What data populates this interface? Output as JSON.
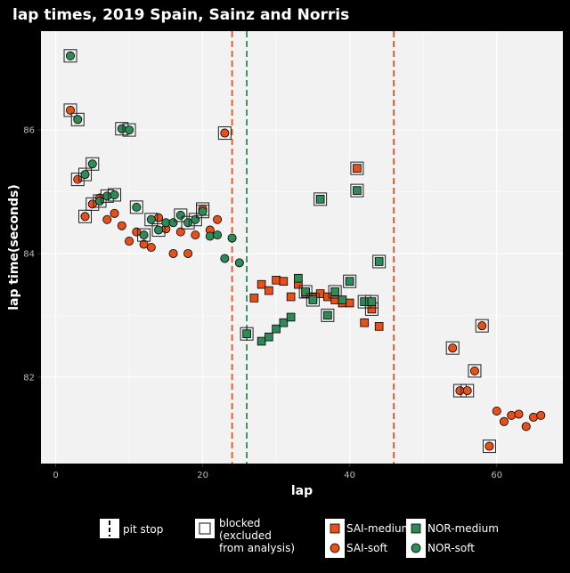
{
  "chart_data": {
    "type": "scatter",
    "title": "lap times, 2019 Spain,  Sainz and Norris",
    "xlabel": "lap",
    "ylabel": "lap time(seconds)",
    "xlim": [
      -2,
      69
    ],
    "ylim": [
      80.6,
      87.6
    ],
    "x_ticks": [
      0,
      20,
      40,
      60
    ],
    "y_ticks": [
      82,
      84,
      86
    ],
    "grid": true,
    "legend_position": "bottom",
    "colors": {
      "SAI": "#e8501a",
      "NOR": "#2e8a57",
      "pit_sai": "#e8501a",
      "pit_nor": "#2e8a57",
      "panel": "#f2f2f2",
      "grid": "#ffffff",
      "background": "#000000"
    },
    "pit_stops": [
      {
        "driver": "SAI",
        "lap": 24
      },
      {
        "driver": "NOR",
        "lap": 26
      },
      {
        "driver": "SAI",
        "lap": 46
      }
    ],
    "series": [
      {
        "name": "SAI-soft",
        "driver": "SAI",
        "compound": "soft",
        "shape": "circle",
        "points": [
          {
            "x": 2,
            "y": 86.32,
            "blocked": true
          },
          {
            "x": 3,
            "y": 85.2,
            "blocked": true
          },
          {
            "x": 4,
            "y": 84.6,
            "blocked": true
          },
          {
            "x": 5,
            "y": 84.8,
            "blocked": true
          },
          {
            "x": 6,
            "y": 84.9
          },
          {
            "x": 7,
            "y": 84.55
          },
          {
            "x": 8,
            "y": 84.65
          },
          {
            "x": 9,
            "y": 84.45
          },
          {
            "x": 10,
            "y": 84.2
          },
          {
            "x": 11,
            "y": 84.35
          },
          {
            "x": 12,
            "y": 84.15
          },
          {
            "x": 13,
            "y": 84.1
          },
          {
            "x": 14,
            "y": 84.58
          },
          {
            "x": 15,
            "y": 84.4
          },
          {
            "x": 16,
            "y": 84.0
          },
          {
            "x": 17,
            "y": 84.35
          },
          {
            "x": 18,
            "y": 84.0
          },
          {
            "x": 19,
            "y": 84.3
          },
          {
            "x": 20,
            "y": 84.72,
            "blocked": true
          },
          {
            "x": 21,
            "y": 84.38
          },
          {
            "x": 22,
            "y": 84.55
          },
          {
            "x": 23,
            "y": 85.95,
            "blocked": true
          },
          {
            "x": 54,
            "y": 82.47,
            "blocked": true
          },
          {
            "x": 55,
            "y": 81.78,
            "blocked": true
          },
          {
            "x": 56,
            "y": 81.78,
            "blocked": true
          },
          {
            "x": 57,
            "y": 82.1,
            "blocked": true
          },
          {
            "x": 58,
            "y": 82.83,
            "blocked": true
          },
          {
            "x": 59,
            "y": 80.88,
            "blocked": true
          },
          {
            "x": 60,
            "y": 81.45
          },
          {
            "x": 61,
            "y": 81.28
          },
          {
            "x": 62,
            "y": 81.38
          },
          {
            "x": 63,
            "y": 81.4
          },
          {
            "x": 64,
            "y": 81.2
          },
          {
            "x": 65,
            "y": 81.35
          },
          {
            "x": 66,
            "y": 81.38
          }
        ]
      },
      {
        "name": "SAI-medium",
        "driver": "SAI",
        "compound": "medium",
        "shape": "square",
        "points": [
          {
            "x": 27,
            "y": 83.28
          },
          {
            "x": 28,
            "y": 83.5
          },
          {
            "x": 29,
            "y": 83.4
          },
          {
            "x": 30,
            "y": 83.57
          },
          {
            "x": 31,
            "y": 83.55
          },
          {
            "x": 32,
            "y": 83.3
          },
          {
            "x": 33,
            "y": 83.5
          },
          {
            "x": 34,
            "y": 83.35
          },
          {
            "x": 35,
            "y": 83.3
          },
          {
            "x": 36,
            "y": 83.35
          },
          {
            "x": 37,
            "y": 83.3
          },
          {
            "x": 38,
            "y": 83.25
          },
          {
            "x": 39,
            "y": 83.2
          },
          {
            "x": 40,
            "y": 83.2
          },
          {
            "x": 41,
            "y": 85.38,
            "blocked": true
          },
          {
            "x": 42,
            "y": 82.88
          },
          {
            "x": 43,
            "y": 83.1,
            "blocked": true
          },
          {
            "x": 44,
            "y": 82.82
          }
        ]
      },
      {
        "name": "NOR-medium",
        "driver": "NOR",
        "compound": "medium",
        "shape": "square",
        "points": [
          {
            "x": 26,
            "y": 82.7,
            "blocked": true
          },
          {
            "x": 28,
            "y": 82.58
          },
          {
            "x": 29,
            "y": 82.65
          },
          {
            "x": 30,
            "y": 82.78
          },
          {
            "x": 31,
            "y": 82.88
          },
          {
            "x": 32,
            "y": 82.97
          },
          {
            "x": 33,
            "y": 83.6
          },
          {
            "x": 34,
            "y": 83.38,
            "blocked": true
          },
          {
            "x": 35,
            "y": 83.25,
            "blocked": true
          },
          {
            "x": 36,
            "y": 84.88,
            "blocked": true
          },
          {
            "x": 37,
            "y": 83.0,
            "blocked": true
          },
          {
            "x": 38,
            "y": 83.38,
            "blocked": true
          },
          {
            "x": 39,
            "y": 83.25
          },
          {
            "x": 40,
            "y": 83.55,
            "blocked": true
          },
          {
            "x": 41,
            "y": 85.02,
            "blocked": true
          },
          {
            "x": 42,
            "y": 83.22,
            "blocked": true
          },
          {
            "x": 43,
            "y": 83.22,
            "blocked": true
          },
          {
            "x": 44,
            "y": 83.87,
            "blocked": true
          }
        ]
      },
      {
        "name": "NOR-soft",
        "driver": "NOR",
        "compound": "soft",
        "shape": "circle",
        "points": [
          {
            "x": 2,
            "y": 87.2,
            "blocked": true
          },
          {
            "x": 3,
            "y": 86.17,
            "blocked": true
          },
          {
            "x": 4,
            "y": 85.28,
            "blocked": true
          },
          {
            "x": 5,
            "y": 85.45,
            "blocked": true
          },
          {
            "x": 6,
            "y": 84.85,
            "blocked": true
          },
          {
            "x": 7,
            "y": 84.93,
            "blocked": true
          },
          {
            "x": 8,
            "y": 84.95,
            "blocked": true
          },
          {
            "x": 9,
            "y": 86.02,
            "blocked": true
          },
          {
            "x": 10,
            "y": 86.0,
            "blocked": true
          },
          {
            "x": 11,
            "y": 84.75,
            "blocked": true
          },
          {
            "x": 12,
            "y": 84.3,
            "blocked": true
          },
          {
            "x": 13,
            "y": 84.55,
            "blocked": true
          },
          {
            "x": 14,
            "y": 84.38,
            "blocked": true
          },
          {
            "x": 15,
            "y": 84.5
          },
          {
            "x": 16,
            "y": 84.5
          },
          {
            "x": 17,
            "y": 84.62,
            "blocked": true
          },
          {
            "x": 18,
            "y": 84.5,
            "blocked": true
          },
          {
            "x": 19,
            "y": 84.55,
            "blocked": true
          },
          {
            "x": 20,
            "y": 84.68,
            "blocked": true
          },
          {
            "x": 21,
            "y": 84.28
          },
          {
            "x": 22,
            "y": 84.3
          },
          {
            "x": 23,
            "y": 83.92
          },
          {
            "x": 24,
            "y": 84.25
          },
          {
            "x": 25,
            "y": 83.85
          }
        ]
      }
    ],
    "legend": {
      "pit_label": "pit stop",
      "blocked_lines": [
        "blocked",
        "(excluded",
        "from analysis)"
      ],
      "entries": [
        "SAI-medium",
        "NOR-medium",
        "SAI-soft",
        "NOR-soft"
      ]
    }
  }
}
